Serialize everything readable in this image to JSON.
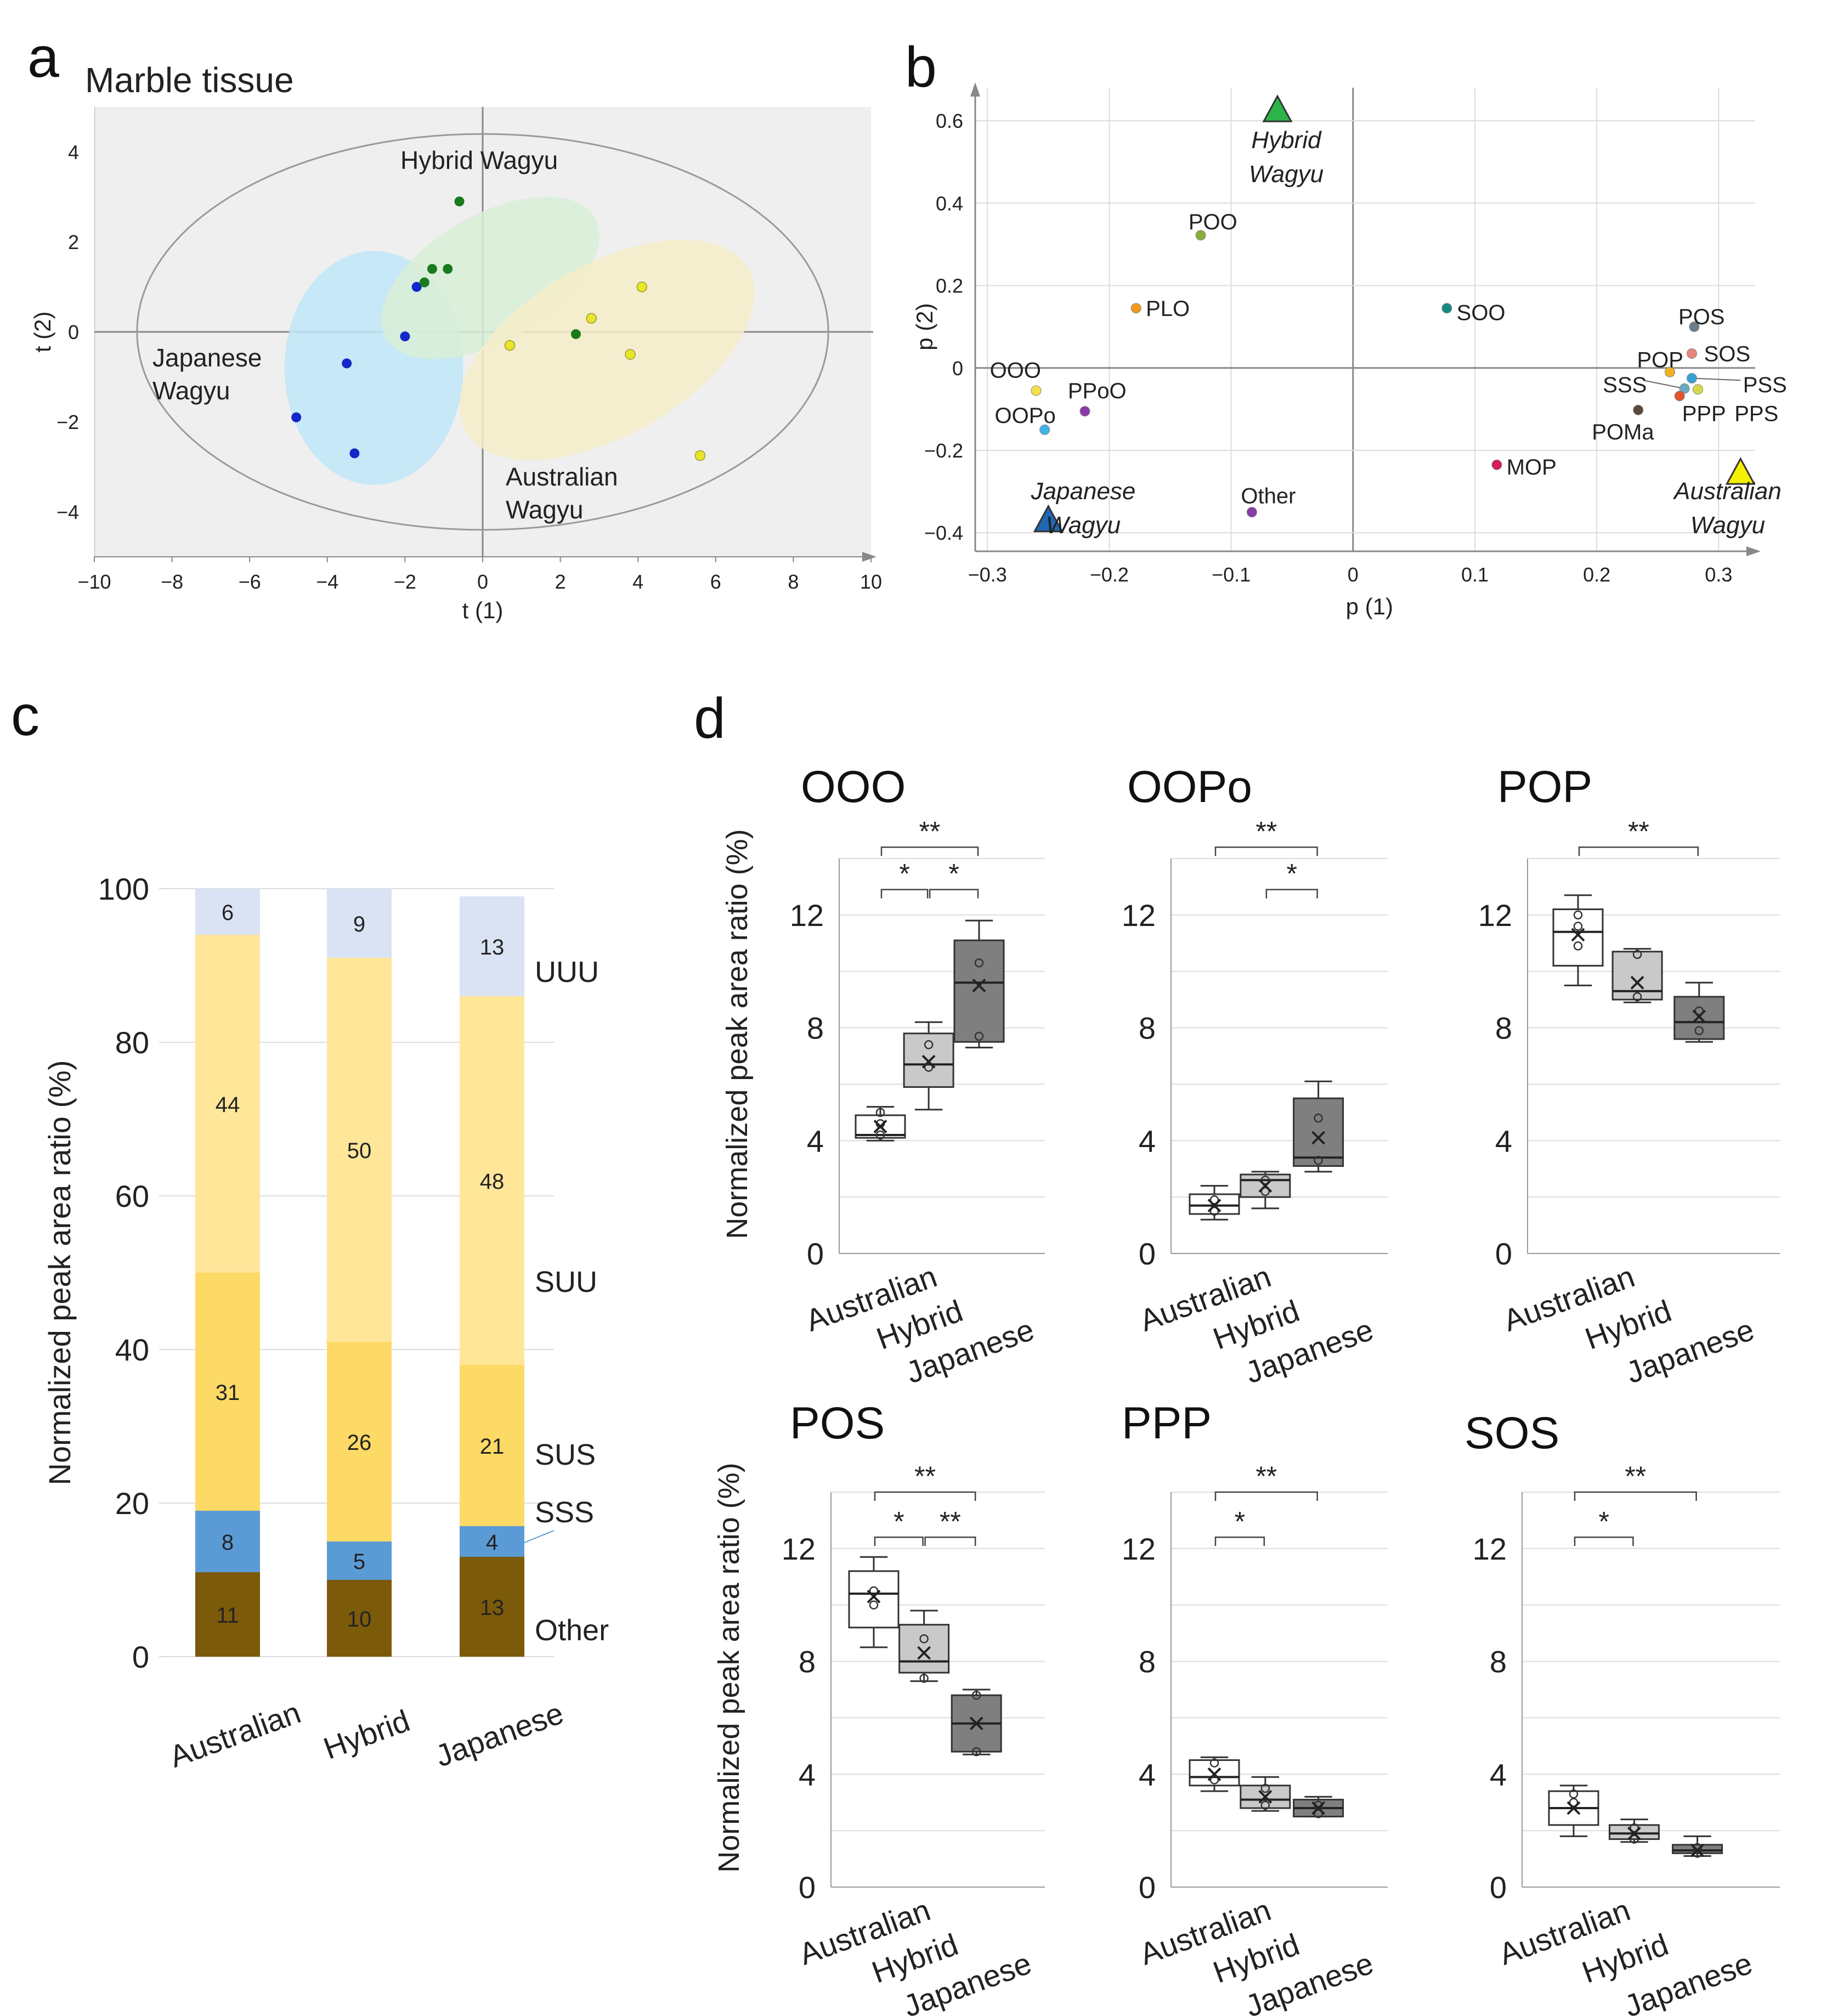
{
  "panels": {
    "a": {
      "letter": "a",
      "title": "Marble tissue"
    },
    "b": {
      "letter": "b"
    },
    "c": {
      "letter": "c"
    },
    "d": {
      "letter": "d"
    }
  },
  "chart_data": [
    {
      "id": "a",
      "type": "scatter",
      "title": "Marble tissue",
      "xlabel": "t (1)",
      "ylabel": "t (2)",
      "xlim": [
        -10,
        10
      ],
      "ylim": [
        -5,
        5
      ],
      "xticks": [
        -10,
        -8,
        -6,
        -4,
        -2,
        0,
        2,
        4,
        6,
        8,
        10
      ],
      "yticks": [
        -4,
        -2,
        0,
        2,
        4
      ],
      "tick_labels_x": [
        "−10",
        "−8",
        "−6",
        "−4",
        "−2",
        "0",
        "2",
        "4",
        "6",
        "8",
        "10"
      ],
      "tick_labels_y": [
        "−4",
        "−2",
        "0",
        "2",
        "4"
      ],
      "colors": {
        "japanese": "#1427c9",
        "hybrid": "#1a7a1f",
        "australian": "#e8e52b",
        "japanese_fill": "#bfe6f7",
        "hybrid_fill": "#d8efd6",
        "australian_fill": "#f6edc8"
      },
      "series": [
        {
          "name": "Japanese Wagyu",
          "label_lines": [
            "Japanese",
            "Wagyu"
          ],
          "color_key": "japanese",
          "points": [
            [
              -1.7,
              1.0
            ],
            [
              -2.0,
              -0.1
            ],
            [
              -3.5,
              -0.7
            ],
            [
              -4.8,
              -1.9
            ],
            [
              -3.3,
              -2.7
            ]
          ],
          "ellipse": {
            "cx": -2.8,
            "cy": -0.8,
            "rx": 2.3,
            "ry": 2.6
          }
        },
        {
          "name": "Hybrid Wagyu",
          "label_lines": [
            "Hybrid Wagyu"
          ],
          "color_key": "hybrid",
          "points": [
            [
              -0.6,
              2.9
            ],
            [
              -1.3,
              1.4
            ],
            [
              -0.9,
              1.4
            ],
            [
              -1.5,
              1.1
            ],
            [
              2.4,
              -0.05
            ]
          ],
          "ellipse": {
            "cx": 0.2,
            "cy": 1.2,
            "rx": 3.1,
            "ry": 1.4,
            "rot": -30
          }
        },
        {
          "name": "Australian Wagyu",
          "label_lines": [
            "Australian",
            "Wagyu"
          ],
          "color_key": "australian",
          "points": [
            [
              4.1,
              1.0
            ],
            [
              2.8,
              0.3
            ],
            [
              0.7,
              -0.3
            ],
            [
              3.8,
              -0.5
            ],
            [
              5.6,
              -2.75
            ]
          ],
          "ellipse": {
            "cx": 3.2,
            "cy": -0.4,
            "rx": 4.2,
            "ry": 1.9,
            "rot": -30
          }
        }
      ],
      "hotelling_ellipse": {
        "cx": 0,
        "cy": 0,
        "rx": 8.9,
        "ry": 4.4
      }
    },
    {
      "id": "b",
      "type": "scatter",
      "xlabel": "p (1)",
      "ylabel": "p (2)",
      "xlim": [
        -0.31,
        0.33
      ],
      "ylim": [
        -0.445,
        0.68
      ],
      "xticks": [
        -0.3,
        -0.2,
        -0.1,
        0,
        0.1,
        0.2,
        0.3
      ],
      "yticks": [
        -0.4,
        -0.2,
        0,
        0.2,
        0.4,
        0.6
      ],
      "tick_labels_x": [
        "−0.3",
        "−0.2",
        "−0.1",
        "0",
        "0.1",
        "0.2",
        "0.3"
      ],
      "tick_labels_y": [
        "−0.4",
        "−0.2",
        "0",
        "0.2",
        "0.4",
        "0.6"
      ],
      "points": [
        {
          "label": "OOO",
          "x": -0.26,
          "y": -0.055,
          "color": "#f3e04a",
          "lx": -0.298,
          "ly": -0.005
        },
        {
          "label": "OOPo",
          "x": -0.253,
          "y": -0.15,
          "color": "#3fb4e6",
          "lx": -0.294,
          "ly": -0.115
        },
        {
          "label": "PPoO",
          "x": -0.22,
          "y": -0.105,
          "color": "#8a3aa8",
          "lx": -0.234,
          "ly": -0.055
        },
        {
          "label": "PLO",
          "x": -0.178,
          "y": 0.145,
          "color": "#f39a1e",
          "lx": -0.17,
          "ly": 0.145
        },
        {
          "label": "POO",
          "x": -0.125,
          "y": 0.322,
          "color": "#8aae3a",
          "lx": -0.135,
          "ly": 0.355
        },
        {
          "label": "SOO",
          "x": 0.077,
          "y": 0.145,
          "color": "#158a80",
          "lx": 0.085,
          "ly": 0.135
        },
        {
          "label": "MOP",
          "x": 0.118,
          "y": -0.235,
          "color": "#d81b5a",
          "lx": 0.126,
          "ly": -0.24
        },
        {
          "label": "Other",
          "x": -0.083,
          "y": -0.35,
          "color": "#8a3aa8",
          "lx": -0.092,
          "ly": -0.31
        },
        {
          "label": "POS",
          "x": 0.28,
          "y": 0.1,
          "color": "#6b7d8a",
          "lx": 0.267,
          "ly": 0.125
        },
        {
          "label": "SOS",
          "x": 0.278,
          "y": 0.035,
          "color": "#e8857a",
          "lx": 0.288,
          "ly": 0.035
        },
        {
          "label": "POP",
          "x": 0.26,
          "y": -0.01,
          "color": "#f2b01e",
          "lx": 0.233,
          "ly": 0.02
        },
        {
          "label": "SSS",
          "x": 0.272,
          "y": -0.05,
          "color": "#6fa8c4",
          "lx": 0.205,
          "ly": -0.04
        },
        {
          "label": "PSS",
          "x": 0.278,
          "y": -0.025,
          "color": "#38a0d8",
          "lx": 0.32,
          "ly": -0.04
        },
        {
          "label": "PPP",
          "x": 0.268,
          "y": -0.068,
          "color": "#e0552a",
          "lx": 0.27,
          "ly": -0.11
        },
        {
          "label": "PPS",
          "x": 0.283,
          "y": -0.052,
          "color": "#d6d84a",
          "lx": 0.313,
          "ly": -0.11
        },
        {
          "label": "POMa",
          "x": 0.234,
          "y": -0.102,
          "color": "#5a4a3a",
          "lx": 0.196,
          "ly": -0.155
        }
      ],
      "groups": [
        {
          "name": "Hybrid Wagyu",
          "lines": [
            "Hybrid",
            "Wagyu"
          ],
          "x": -0.062,
          "y": 0.625,
          "color": "#2db34a"
        },
        {
          "name": "Japanese Wagyu",
          "lines": [
            "Japanese",
            "Wagyu"
          ],
          "x": -0.25,
          "y": -0.37,
          "color": "#1f68b5"
        },
        {
          "name": "Australian Wagyu",
          "lines": [
            "Australian",
            "Wagyu"
          ],
          "x": 0.318,
          "y": -0.255,
          "color": "#f3f000"
        }
      ]
    },
    {
      "id": "c",
      "type": "bar",
      "stacked": true,
      "ylabel": "Normalized peak area ratio (%)",
      "ylim": [
        0,
        100
      ],
      "yticks": [
        0,
        20,
        40,
        60,
        80,
        100
      ],
      "categories": [
        "Australian",
        "Hybrid",
        "Japanese"
      ],
      "series": [
        {
          "name": "Other",
          "color": "#7b5a0a",
          "values": [
            11,
            10,
            13
          ]
        },
        {
          "name": "SSS",
          "color": "#5b9bd5",
          "values": [
            8,
            5,
            4
          ]
        },
        {
          "name": "SUS",
          "color": "#fdd966",
          "values": [
            31,
            26,
            21
          ]
        },
        {
          "name": "SUU",
          "color": "#ffe699",
          "values": [
            44,
            50,
            48
          ]
        },
        {
          "name": "UUU",
          "color": "#dae3f3",
          "values": [
            6,
            9,
            13
          ]
        }
      ]
    },
    {
      "id": "d",
      "type": "box",
      "ylabel": "Normalized peak area ratio (%)",
      "categories": [
        "Australian",
        "Hybrid",
        "Japanese"
      ],
      "fills": [
        "#ffffff",
        "#c9c9c9",
        "#7f7f7f"
      ],
      "ylim": [
        0,
        14
      ],
      "yticks": [
        0,
        4,
        8,
        12
      ],
      "subplots": [
        {
          "title": "OOO",
          "boxes": [
            {
              "min": 4.0,
              "q1": 4.1,
              "median": 4.2,
              "q3": 4.9,
              "max": 5.2,
              "mean": 4.5,
              "pts": [
                4.2,
                4.6,
                5.0
              ]
            },
            {
              "min": 5.1,
              "q1": 5.9,
              "median": 6.7,
              "q3": 7.8,
              "max": 8.2,
              "mean": 6.8,
              "pts": [
                6.6,
                7.4
              ]
            },
            {
              "min": 7.3,
              "q1": 7.5,
              "median": 9.6,
              "q3": 11.1,
              "max": 11.8,
              "mean": 9.5,
              "pts": [
                7.7,
                10.3
              ]
            }
          ],
          "sig": [
            {
              "from": 0,
              "to": 2,
              "label": "**",
              "y": 14.4
            },
            {
              "from": 0,
              "to": 1,
              "label": "*",
              "y": 12.9
            },
            {
              "from": 1,
              "to": 2,
              "label": "*",
              "y": 12.9
            }
          ]
        },
        {
          "title": "OOPo",
          "boxes": [
            {
              "min": 1.2,
              "q1": 1.4,
              "median": 1.7,
              "q3": 2.1,
              "max": 2.4,
              "mean": 1.7,
              "pts": [
                1.5,
                1.9
              ]
            },
            {
              "min": 1.6,
              "q1": 2.0,
              "median": 2.6,
              "q3": 2.8,
              "max": 2.9,
              "mean": 2.4,
              "pts": [
                2.2,
                2.6
              ]
            },
            {
              "min": 2.9,
              "q1": 3.1,
              "median": 3.4,
              "q3": 5.5,
              "max": 6.1,
              "mean": 4.1,
              "pts": [
                3.3,
                4.8
              ]
            }
          ],
          "sig": [
            {
              "from": 0,
              "to": 2,
              "label": "**",
              "y": 14.4
            },
            {
              "from": 1,
              "to": 2,
              "label": "*",
              "y": 12.9
            }
          ]
        },
        {
          "title": "POP",
          "boxes": [
            {
              "min": 9.5,
              "q1": 10.2,
              "median": 11.4,
              "q3": 12.2,
              "max": 12.7,
              "mean": 11.3,
              "pts": [
                10.9,
                11.6,
                12.0
              ]
            },
            {
              "min": 8.9,
              "q1": 9.0,
              "median": 9.3,
              "q3": 10.7,
              "max": 10.8,
              "mean": 9.6,
              "pts": [
                9.1,
                10.6
              ]
            },
            {
              "min": 7.5,
              "q1": 7.6,
              "median": 8.2,
              "q3": 9.1,
              "max": 9.6,
              "mean": 8.4,
              "pts": [
                7.9,
                8.6
              ]
            }
          ],
          "sig": [
            {
              "from": 0,
              "to": 2,
              "label": "**",
              "y": 14.4
            }
          ]
        },
        {
          "title": "POS",
          "boxes": [
            {
              "min": 8.5,
              "q1": 9.2,
              "median": 10.4,
              "q3": 11.2,
              "max": 11.7,
              "mean": 10.3,
              "pts": [
                10.0,
                10.5
              ]
            },
            {
              "min": 7.3,
              "q1": 7.6,
              "median": 8.0,
              "q3": 9.3,
              "max": 9.8,
              "mean": 8.3,
              "pts": [
                7.4,
                8.8
              ]
            },
            {
              "min": 4.7,
              "q1": 4.8,
              "median": 5.8,
              "q3": 6.8,
              "max": 7.0,
              "mean": 5.8,
              "pts": [
                4.8,
                6.8
              ]
            }
          ],
          "sig": [
            {
              "from": 0,
              "to": 2,
              "label": "**",
              "y": 14.0
            },
            {
              "from": 0,
              "to": 1,
              "label": "*",
              "y": 12.4
            },
            {
              "from": 1,
              "to": 2,
              "label": "**",
              "y": 12.4
            }
          ]
        },
        {
          "title": "PPP",
          "boxes": [
            {
              "min": 3.4,
              "q1": 3.6,
              "median": 3.9,
              "q3": 4.5,
              "max": 4.6,
              "mean": 4.0,
              "pts": [
                3.8,
                4.4
              ]
            },
            {
              "min": 2.7,
              "q1": 2.8,
              "median": 3.1,
              "q3": 3.6,
              "max": 3.9,
              "mean": 3.2,
              "pts": [
                2.9,
                3.5
              ]
            },
            {
              "min": 2.5,
              "q1": 2.5,
              "median": 2.8,
              "q3": 3.1,
              "max": 3.2,
              "mean": 2.8,
              "pts": [
                2.6,
                2.9
              ]
            }
          ],
          "sig": [
            {
              "from": 0,
              "to": 2,
              "label": "**",
              "y": 14.0
            },
            {
              "from": 0,
              "to": 1,
              "label": "*",
              "y": 12.4
            }
          ]
        },
        {
          "title": "SOS",
          "boxes": [
            {
              "min": 1.8,
              "q1": 2.2,
              "median": 2.8,
              "q3": 3.4,
              "max": 3.6,
              "mean": 2.8,
              "pts": [
                3.0,
                3.3
              ]
            },
            {
              "min": 1.6,
              "q1": 1.7,
              "median": 1.9,
              "q3": 2.2,
              "max": 2.4,
              "mean": 1.9,
              "pts": [
                1.7,
                2.1
              ]
            },
            {
              "min": 1.1,
              "q1": 1.2,
              "median": 1.3,
              "q3": 1.5,
              "max": 1.8,
              "mean": 1.3,
              "pts": [
                1.2,
                1.4
              ]
            }
          ],
          "sig": [
            {
              "from": 0,
              "to": 2,
              "label": "**",
              "y": 14.0
            },
            {
              "from": 0,
              "to": 1,
              "label": "*",
              "y": 12.4
            }
          ]
        }
      ]
    }
  ]
}
